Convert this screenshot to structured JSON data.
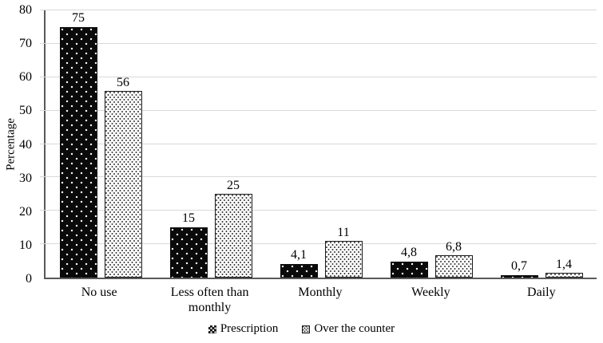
{
  "chart_data": {
    "type": "bar",
    "title": "",
    "ylabel": "Percentage",
    "xlabel": "",
    "ylim": [
      0,
      80
    ],
    "yticks": [
      0,
      10,
      20,
      30,
      40,
      50,
      60,
      70,
      80
    ],
    "grid": true,
    "legend_position": "bottom",
    "categories": [
      "No use",
      "Less often than monthly",
      "Monthly",
      "Weekly",
      "Daily"
    ],
    "series": [
      {
        "name": "Prescription",
        "pattern": "black-dotted",
        "values": [
          75,
          15,
          4.1,
          4.8,
          0.7
        ],
        "value_labels": [
          "75",
          "15",
          "4,1",
          "4,8",
          "0,7"
        ]
      },
      {
        "name": "Over the counter",
        "pattern": "white-dotted",
        "values": [
          56,
          25,
          11,
          6.8,
          1.4
        ],
        "value_labels": [
          "56",
          "25",
          "11",
          "6,8",
          "1,4"
        ]
      }
    ]
  },
  "colors": {
    "axis": "#595959",
    "gridline": "#d9d9d9",
    "text": "#000000",
    "prescription_fill": "#000000",
    "prescription_dots": "#ffffff",
    "otc_fill": "#ffffff",
    "otc_dots": "#3a3a3a"
  }
}
